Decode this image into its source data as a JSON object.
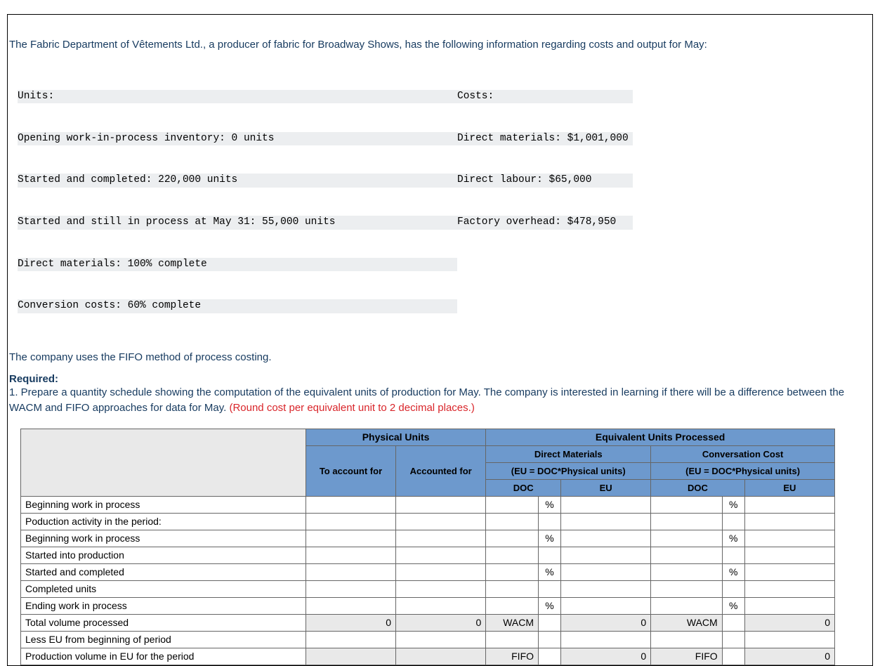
{
  "intro": "The Fabric Department of Vêtements Ltd., a producer of fabric for Broadway Shows, has the following information regarding costs and output for May:",
  "units_block": {
    "lines": [
      "Units:",
      "Opening work-in-process inventory: 0 units",
      "Started and completed: 220,000 units",
      "Started and still in process at May 31: 55,000 units",
      "Direct materials: 100% complete",
      "Conversion costs: 60% complete"
    ]
  },
  "costs_block": {
    "lines": [
      "Costs:",
      "Direct materials: $1,001,000",
      "Direct labour: $65,000",
      "Factory overhead: $478,950"
    ]
  },
  "method_line": "The company uses the FIFO method of process costing.",
  "required_head": "Required:",
  "required_body_pre": "1. Prepare a quantity schedule showing the computation of the equivalent units of production for May. The company is interested in learning if there will be a difference between the WACM and FIFO approaches for data for May. ",
  "required_body_red": "(Round cost per equivalent unit to 2 decimal places.)",
  "table": {
    "headers": {
      "physical_units": "Physical Units",
      "equiv_units": "Equivalent Units Processed",
      "to_account_for": "To account for",
      "accounted_for": "Accounted for",
      "direct_materials": "Direct Materials",
      "conversation_cost": "Conversation Cost",
      "eu_formula": "(EU = DOC*Physical units)",
      "doc": "DOC",
      "eu": "EU"
    },
    "rows": [
      {
        "label": "Beginning work in process",
        "to_account": "",
        "accounted": "",
        "dm_doc": "",
        "dm_pct": "%",
        "dm_eu": "",
        "cc_doc": "",
        "cc_pct": "%",
        "cc_eu": ""
      },
      {
        "label": "Poduction activity in the period:",
        "to_account": "",
        "accounted": "",
        "dm_doc": "",
        "dm_pct": "",
        "dm_eu": "",
        "cc_doc": "",
        "cc_pct": "",
        "cc_eu": ""
      },
      {
        "label": "Beginning work in process",
        "to_account": "",
        "accounted": "",
        "dm_doc": "",
        "dm_pct": "%",
        "dm_eu": "",
        "cc_doc": "",
        "cc_pct": "%",
        "cc_eu": ""
      },
      {
        "label": "Started into production",
        "to_account": "",
        "accounted": "",
        "dm_doc": "",
        "dm_pct": "",
        "dm_eu": "",
        "cc_doc": "",
        "cc_pct": "",
        "cc_eu": ""
      },
      {
        "label": "Started and completed",
        "to_account": "",
        "accounted": "",
        "dm_doc": "",
        "dm_pct": "%",
        "dm_eu": "",
        "cc_doc": "",
        "cc_pct": "%",
        "cc_eu": ""
      },
      {
        "label": "Completed units",
        "to_account": "",
        "accounted": "",
        "dm_doc": "",
        "dm_pct": "",
        "dm_eu": "",
        "cc_doc": "",
        "cc_pct": "",
        "cc_eu": ""
      },
      {
        "label": "Ending work in process",
        "to_account": "",
        "accounted": "",
        "dm_doc": "",
        "dm_pct": "%",
        "dm_eu": "",
        "cc_doc": "",
        "cc_pct": "%",
        "cc_eu": ""
      },
      {
        "label": "Total volume processed",
        "to_account": "0",
        "accounted": "0",
        "dm_doc": "WACM",
        "dm_pct": "",
        "dm_eu": "0",
        "cc_doc": "WACM",
        "cc_pct": "",
        "cc_eu": "0",
        "calc": true
      },
      {
        "label": "Less EU from beginning of period",
        "to_account": "",
        "accounted": "",
        "dm_doc": "",
        "dm_pct": "",
        "dm_eu": "",
        "cc_doc": "",
        "cc_pct": "",
        "cc_eu": ""
      },
      {
        "label": "Production volume in EU for the period",
        "to_account": "",
        "accounted": "",
        "dm_doc": "FIFO",
        "dm_pct": "",
        "dm_eu": "0",
        "cc_doc": "FIFO",
        "cc_pct": "",
        "cc_eu": "0",
        "calc": true
      }
    ],
    "colwidths": {
      "label": 380,
      "to_account": 120,
      "accounted": 120,
      "dm_doc": 70,
      "dm_pct": 30,
      "dm_eu": 120,
      "cc_doc": 95,
      "cc_pct": 30,
      "cc_eu": 120
    }
  }
}
